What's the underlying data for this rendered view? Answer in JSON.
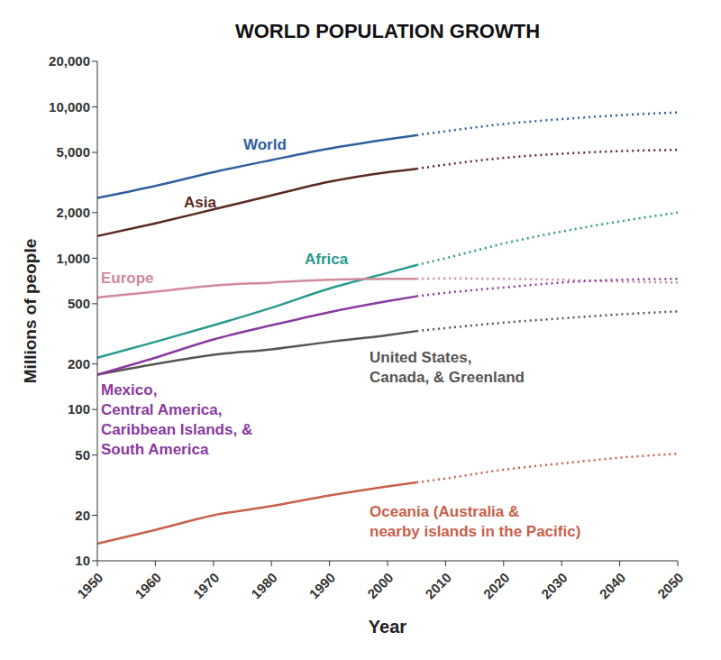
{
  "chart_data": {
    "type": "line",
    "title": "WORLD POPULATION GROWTH",
    "x_label": "Year",
    "y_label": "Millions of people",
    "log": "y",
    "grid": false,
    "x": [
      1950,
      1960,
      1970,
      1980,
      1990,
      2000,
      2005,
      2010,
      2020,
      2030,
      2040,
      2050
    ],
    "xlim": [
      1950,
      2050
    ],
    "xticks": [
      1950,
      1960,
      1970,
      1980,
      1990,
      2000,
      2010,
      2020,
      2030,
      2040,
      2050
    ],
    "ylim": [
      10,
      20000
    ],
    "yticks": [
      10,
      20,
      50,
      100,
      200,
      500,
      {
        "value": 1000,
        "label": "1,000"
      },
      {
        "value": 2000,
        "label": "2,000"
      },
      {
        "value": 5000,
        "label": "5,000"
      },
      {
        "value": 10000,
        "label": "10,000"
      },
      {
        "value": 20000,
        "label": "20,000"
      }
    ],
    "series": [
      {
        "name": "World",
        "color": "#2f5f9e",
        "values": [
          2500,
          3000,
          3700,
          4450,
          5300,
          6100,
          6500,
          null,
          null,
          null,
          null,
          null
        ],
        "projected": [
          null,
          null,
          null,
          null,
          null,
          null,
          6500,
          6900,
          7700,
          8300,
          8800,
          9200
        ]
      },
      {
        "name": "Asia",
        "color": "#5a2a20",
        "values": [
          1400,
          1700,
          2100,
          2600,
          3200,
          3700,
          3900,
          null,
          null,
          null,
          null,
          null
        ],
        "projected": [
          null,
          null,
          null,
          null,
          null,
          null,
          3900,
          4150,
          4600,
          4900,
          5100,
          5200
        ]
      },
      {
        "name": "Africa",
        "color": "#2a9a8f",
        "values": [
          220,
          280,
          360,
          470,
          630,
          800,
          900,
          null,
          null,
          null,
          null,
          null
        ],
        "projected": [
          null,
          null,
          null,
          null,
          null,
          null,
          900,
          1000,
          1250,
          1500,
          1750,
          2000
        ]
      },
      {
        "name": "Europe",
        "color": "#d08a9a",
        "values": [
          550,
          600,
          660,
          690,
          720,
          730,
          730,
          null,
          null,
          null,
          null,
          null
        ],
        "projected": [
          null,
          null,
          null,
          null,
          null,
          null,
          730,
          735,
          730,
          720,
          700,
          690
        ]
      },
      {
        "name": "United States,\nCanada, & Greenland",
        "color": "#555555",
        "values": [
          170,
          200,
          230,
          250,
          280,
          310,
          330,
          null,
          null,
          null,
          null,
          null
        ],
        "projected": [
          null,
          null,
          null,
          null,
          null,
          null,
          330,
          345,
          375,
          400,
          425,
          445
        ]
      },
      {
        "name": "Mexico,\nCentral America,\nCaribbean Islands, &\nSouth America",
        "color": "#8a3aa0",
        "values": [
          170,
          220,
          290,
          360,
          440,
          520,
          560,
          null,
          null,
          null,
          null,
          null
        ],
        "projected": [
          null,
          null,
          null,
          null,
          null,
          null,
          560,
          590,
          640,
          690,
          720,
          730
        ]
      },
      {
        "name": "Oceania (Australia &\nnearby islands in the Pacific)",
        "color": "#c8604a",
        "values": [
          13,
          16,
          20,
          23,
          27,
          31,
          33,
          null,
          null,
          null,
          null,
          null
        ],
        "projected": [
          null,
          null,
          null,
          null,
          null,
          null,
          33,
          35,
          40,
          44,
          48,
          51
        ]
      }
    ]
  }
}
